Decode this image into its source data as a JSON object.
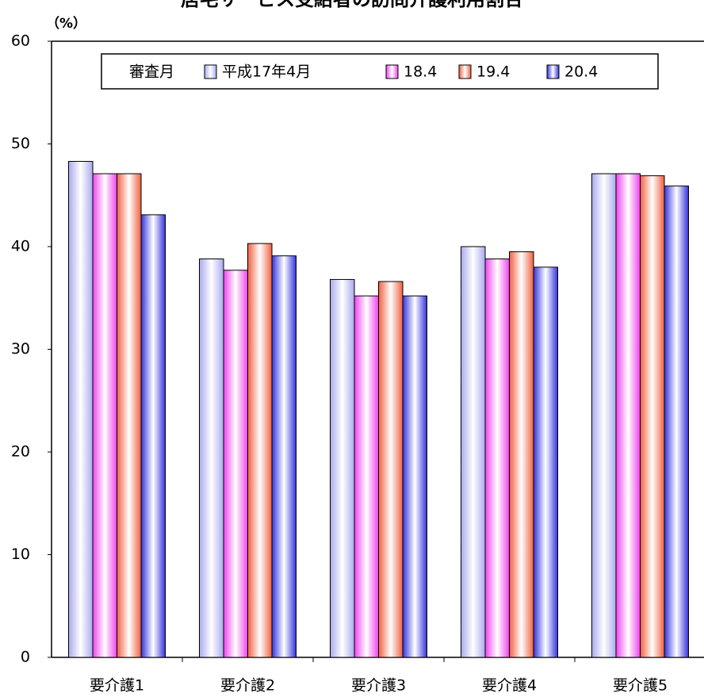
{
  "chart_data": {
    "type": "bar",
    "title": "居宅サービス受給者の訪問介護利用割合",
    "y_unit": "（%）",
    "legend_title": "審査月",
    "categories": [
      "要介護1",
      "要介護2",
      "要介護3",
      "要介護4",
      "要介護5"
    ],
    "series": [
      {
        "name": "平成17年4月",
        "color": "#aaaaee",
        "values": [
          48.3,
          38.8,
          36.8,
          40.0,
          47.1
        ]
      },
      {
        "name": "18.4",
        "color": "#ee44ee",
        "values": [
          47.1,
          37.7,
          35.2,
          38.8,
          47.1
        ]
      },
      {
        "name": "19.4",
        "color": "#f06040",
        "values": [
          47.1,
          40.3,
          36.6,
          39.5,
          46.9
        ]
      },
      {
        "name": "20.4",
        "color": "#3333dd",
        "values": [
          43.1,
          39.1,
          35.2,
          38.0,
          45.9
        ]
      }
    ],
    "ylim": [
      0,
      60
    ],
    "yticks": [
      0,
      10,
      20,
      30,
      40,
      50,
      60
    ]
  }
}
